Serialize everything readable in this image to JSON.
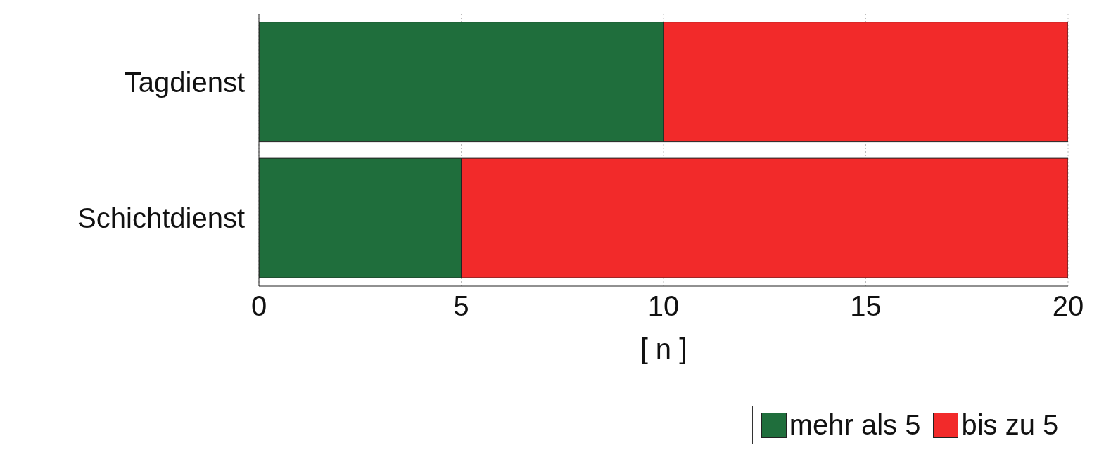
{
  "chart_data": {
    "type": "bar",
    "orientation": "horizontal",
    "stacked": true,
    "categories": [
      "Tagdienst",
      "Schichtdienst"
    ],
    "series": [
      {
        "name": "mehr als 5",
        "color": "#1f6e3c",
        "values": [
          10,
          5
        ]
      },
      {
        "name": "bis zu 5",
        "color": "#f22a2a",
        "values": [
          10,
          15
        ]
      }
    ],
    "xlabel": "[ n ]",
    "xlim": [
      0,
      20
    ],
    "xticks": [
      0,
      5,
      10,
      15,
      20
    ],
    "grid": "x",
    "legend": "bottom"
  }
}
